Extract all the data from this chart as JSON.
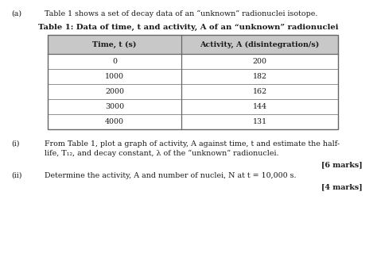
{
  "part_label": "(a)",
  "intro_text": "Table 1 shows a set of decay data of an “unknown” radionuclei isotope.",
  "table_title": "Table 1: Data of time, t and activity, A of an “unknown” radionuclei",
  "col1_header": "Time, t (s)",
  "col2_header": "Activity, A (disintegration/s)",
  "time_values": [
    "0",
    "1000",
    "2000",
    "3000",
    "4000"
  ],
  "activity_values": [
    "200",
    "182",
    "162",
    "144",
    "131"
  ],
  "header_bg": "#c8c8c8",
  "row_bg_white": "#ffffff",
  "row_bg_gray": "#efefef",
  "part_i_label": "(i)",
  "part_i_line1": "From Table 1, plot a graph of activity, A against time, t and estimate the half-",
  "part_i_line2": "life, T₁₂, and decay constant, λ of the “unknown” radionuclei.",
  "part_i_marks": "[6 marks]",
  "part_ii_label": "(ii)",
  "part_ii_text": "Determine the activity, A and number of nuclei, N at t = 10,000 s.",
  "part_ii_marks": "[4 marks]",
  "bg_color": "#ffffff",
  "text_color": "#1a1a1a",
  "border_color": "#666666",
  "fs_body": 6.8,
  "fs_header": 6.8,
  "fs_title": 7.2,
  "fs_intro": 6.8
}
